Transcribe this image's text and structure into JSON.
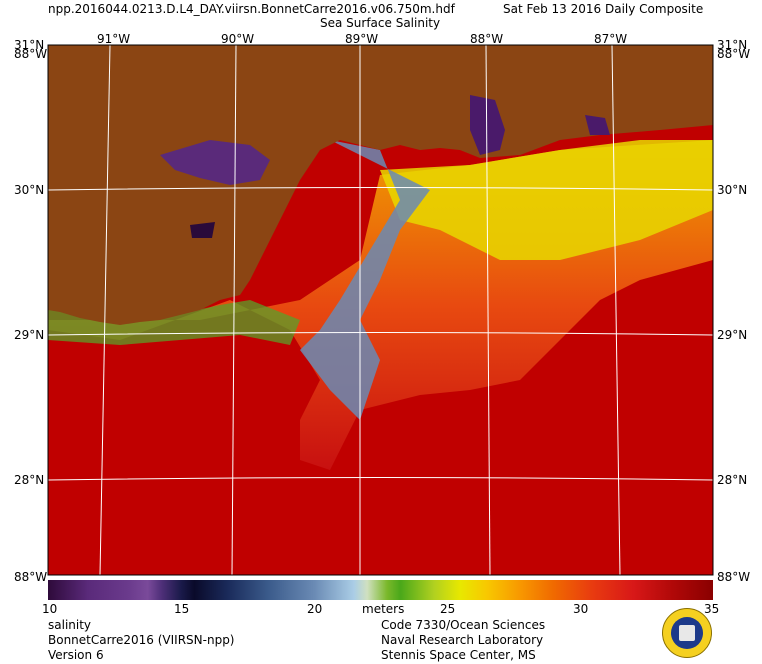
{
  "header": {
    "file_name": "npp.2016044.0213.D.L4_DAY.viirsn.BonnetCarre2016.v06.750m.hdf",
    "date_label": "Sat Feb 13 2016 Daily Composite",
    "product_title": "Sea Surface Salinity"
  },
  "map": {
    "longitude_labels": [
      "91°W",
      "90°W",
      "89°W",
      "88°W",
      "87°W"
    ],
    "latitude_labels": [
      "30°N",
      "29°N",
      "28°N"
    ],
    "corner_top_left": "31°N",
    "corner_top_left_lon": "88°W",
    "corner_top_right": "31°N",
    "corner_top_right_lon": "88°W",
    "corner_bottom_left": "88°W",
    "corner_bottom_right": "88°W",
    "colors": {
      "land": "#8b4513",
      "ocean_high_salinity": "#c00000",
      "graticule": "#ffffff"
    }
  },
  "colorbar": {
    "tick_labels": [
      "10",
      "15",
      "20",
      "25",
      "30",
      "35"
    ],
    "unit_label": "meters"
  },
  "footer": {
    "left": [
      "salinity",
      "BonnetCarre2016 (VIIRSN-npp)",
      "Version 6"
    ],
    "right": [
      "Code 7330/Ocean Sciences",
      "Naval Research Laboratory",
      "Stennis Space Center, MS"
    ]
  },
  "logo": "NRL seal"
}
